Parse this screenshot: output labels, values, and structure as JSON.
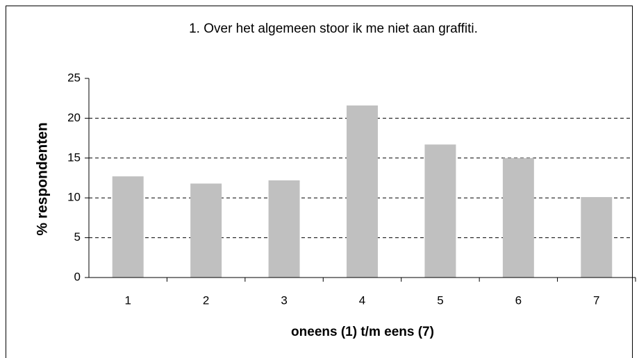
{
  "chart_data": {
    "type": "bar",
    "title": "1. Over het algemeen stoor ik me niet aan graffiti.",
    "xlabel": "oneens (1) t/m eens (7)",
    "ylabel": "% respondenten",
    "categories": [
      "1",
      "2",
      "3",
      "4",
      "5",
      "6",
      "7"
    ],
    "values": [
      12.7,
      11.8,
      12.2,
      21.6,
      16.7,
      15.0,
      10.1
    ],
    "color": "#c0c0c0",
    "ylim": [
      0,
      25
    ],
    "yticks": [
      0,
      5,
      10,
      15,
      20,
      25
    ],
    "grid": true
  }
}
